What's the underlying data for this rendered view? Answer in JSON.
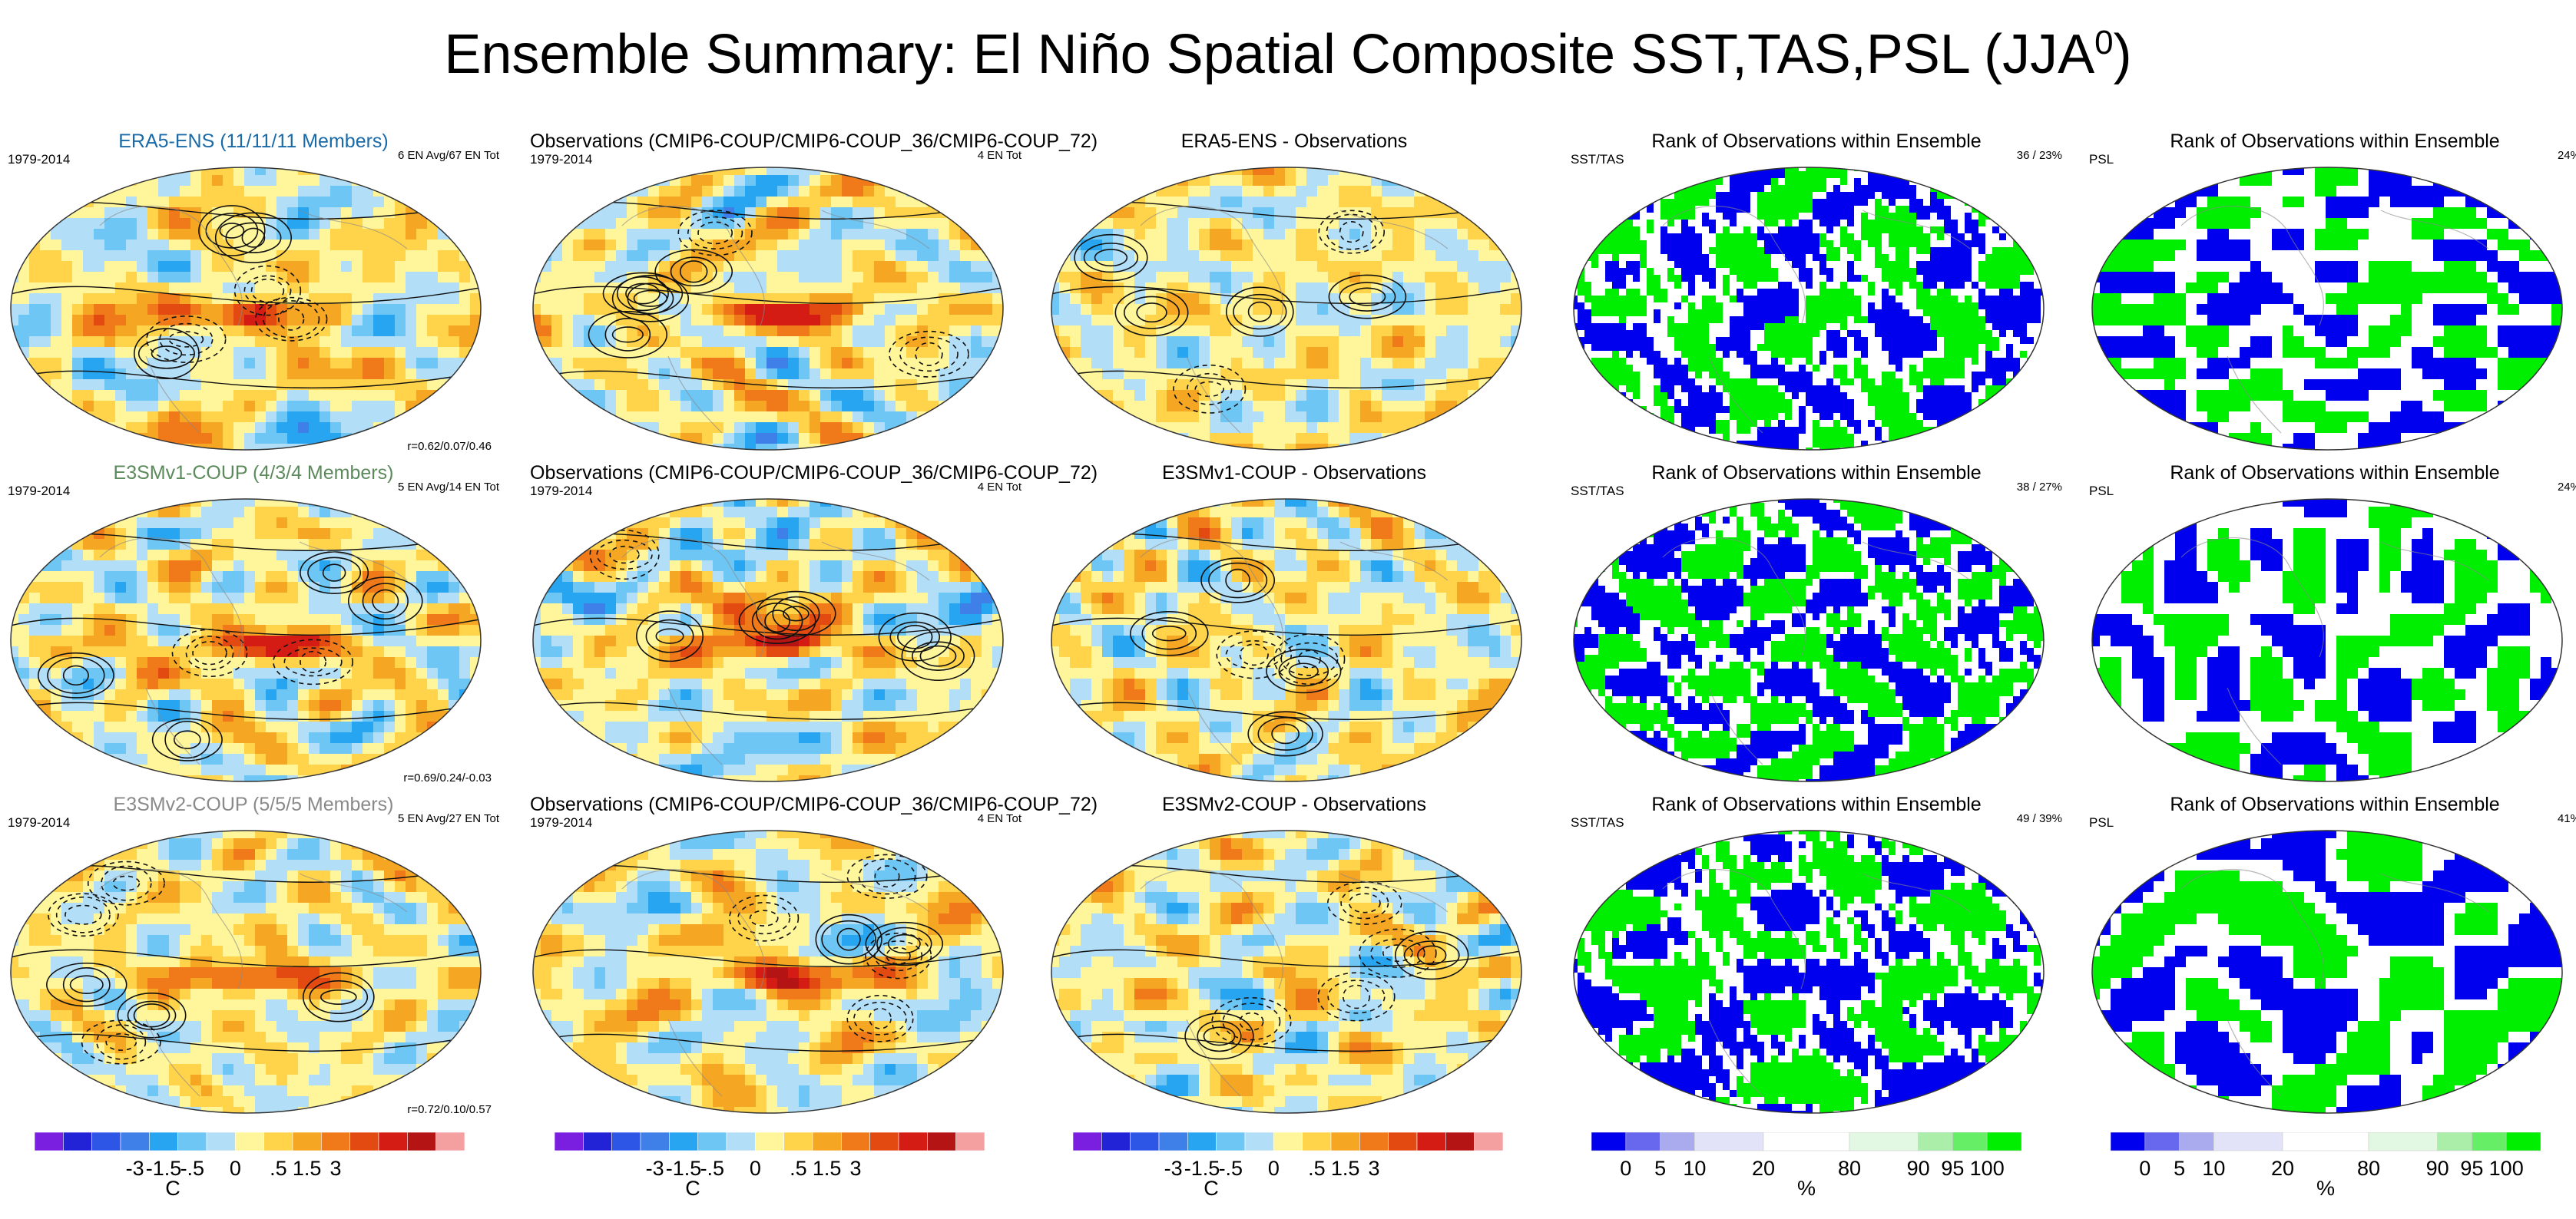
{
  "title": "Ensemble Summary: El Niño Spatial Composite SST,TAS,PSL (JJA",
  "title_sup": "0",
  "title_close": ")",
  "rows": [
    {
      "panels": [
        {
          "title": "ERA5-ENS (11/11/11 Members)",
          "title_color": "#1a6aa8",
          "left": "1979-2014",
          "right": "6 EN Avg/67 EN Tot",
          "bottom": "r=0.62/0.07/0.46",
          "kind": "temp",
          "seed": 11
        },
        {
          "title": "Observations (CMIP6-COUP/CMIP6-COUP_36/CMIP6-COUP_72)",
          "title_color": "#000000",
          "left": "1979-2014",
          "right": "4 EN Tot",
          "bottom": "",
          "kind": "temp",
          "seed": 12
        },
        {
          "title": "ERA5-ENS - Observations",
          "title_color": "#000000",
          "left": "",
          "right": "",
          "bottom": "",
          "kind": "diff",
          "seed": 13
        },
        {
          "title": "Rank of Observations within Ensemble",
          "title_color": "#000000",
          "left": "SST/TAS",
          "right": "36 /  23%",
          "bottom": "",
          "kind": "rank",
          "seed": 14
        },
        {
          "title": "Rank of Observations within Ensemble",
          "title_color": "#000000",
          "left": "PSL",
          "right": "24%",
          "bottom": "",
          "kind": "rankpsl",
          "seed": 15
        }
      ]
    },
    {
      "panels": [
        {
          "title": "E3SMv1-COUP (4/3/4 Members)",
          "title_color": "#5c8a5c",
          "left": "1979-2014",
          "right": "5 EN Avg/14 EN Tot",
          "bottom": "r=0.69/0.24/-0.03",
          "kind": "temp",
          "seed": 21
        },
        {
          "title": "Observations (CMIP6-COUP/CMIP6-COUP_36/CMIP6-COUP_72)",
          "title_color": "#000000",
          "left": "1979-2014",
          "right": "4 EN Tot",
          "bottom": "",
          "kind": "temp",
          "seed": 22
        },
        {
          "title": "E3SMv1-COUP - Observations",
          "title_color": "#000000",
          "left": "",
          "right": "",
          "bottom": "",
          "kind": "diff",
          "seed": 23
        },
        {
          "title": "Rank of Observations within Ensemble",
          "title_color": "#000000",
          "left": "SST/TAS",
          "right": "38 /  27%",
          "bottom": "",
          "kind": "rank",
          "seed": 24
        },
        {
          "title": "Rank of Observations within Ensemble",
          "title_color": "#000000",
          "left": "PSL",
          "right": "24%",
          "bottom": "",
          "kind": "rankpsl",
          "seed": 25
        }
      ]
    },
    {
      "panels": [
        {
          "title": "E3SMv2-COUP (5/5/5 Members)",
          "title_color": "#8a8a8a",
          "left": "1979-2014",
          "right": "5 EN Avg/27 EN Tot",
          "bottom": "r=0.72/0.10/0.57",
          "kind": "temp",
          "seed": 31
        },
        {
          "title": "Observations (CMIP6-COUP/CMIP6-COUP_36/CMIP6-COUP_72)",
          "title_color": "#000000",
          "left": "1979-2014",
          "right": "4 EN Tot",
          "bottom": "",
          "kind": "temp",
          "seed": 32
        },
        {
          "title": "E3SMv2-COUP - Observations",
          "title_color": "#000000",
          "left": "",
          "right": "",
          "bottom": "",
          "kind": "diff",
          "seed": 33
        },
        {
          "title": "Rank of Observations within Ensemble",
          "title_color": "#000000",
          "left": "SST/TAS",
          "right": "49 /  39%",
          "bottom": "",
          "kind": "rank",
          "seed": 34
        },
        {
          "title": "Rank of Observations within Ensemble",
          "title_color": "#000000",
          "left": "PSL",
          "right": "41%",
          "bottom": "",
          "kind": "rankpsl",
          "seed": 35
        }
      ]
    }
  ],
  "colorbars": [
    {
      "kind": "temp",
      "unit": "C",
      "labels": [
        "-3",
        "-1.5",
        "-.5",
        "0",
        ".5",
        "1.5",
        "3"
      ]
    },
    {
      "kind": "temp",
      "unit": "C",
      "labels": [
        "-3",
        "-1.5",
        "-.5",
        "0",
        ".5",
        "1.5",
        "3"
      ]
    },
    {
      "kind": "temp",
      "unit": "C",
      "labels": [
        "-3",
        "-1.5",
        "-.5",
        "0",
        ".5",
        "1.5",
        "3"
      ]
    },
    {
      "kind": "rank",
      "unit": "%",
      "labels": [
        "0",
        "5",
        "10",
        "20",
        "80",
        "90",
        "95",
        "100"
      ]
    },
    {
      "kind": "rank",
      "unit": "%",
      "labels": [
        "0",
        "5",
        "10",
        "20",
        "80",
        "90",
        "95",
        "100"
      ]
    }
  ],
  "palettes": {
    "temp": [
      "#7a1fe0",
      "#2222d6",
      "#2e56e6",
      "#3f7fe8",
      "#27a5f0",
      "#6ec6f5",
      "#b3def7",
      "#fff59a",
      "#ffd34a",
      "#f5a623",
      "#f07a1a",
      "#e34a12",
      "#d41c14",
      "#b51414",
      "#f5a0a0"
    ],
    "rank": [
      "#0000ee",
      "#6868ee",
      "#aaaaee",
      "#e2e2f8",
      "#ffffff",
      "#e2f8e2",
      "#aaeeaa",
      "#66ee66",
      "#00ee00"
    ]
  },
  "chart_data": [
    {
      "type": "heatmap",
      "title": "ERA5-ENS (11/11/11 Members)",
      "variable": "SST/TAS/PSL El Niño composite",
      "period": "1979-2014",
      "unit": "C",
      "levels": [
        -3,
        -1.5,
        -0.5,
        0,
        0.5,
        1.5,
        3
      ]
    },
    {
      "type": "heatmap",
      "title": "Observations (CMIP6-COUP/CMIP6-COUP_36/CMIP6-COUP_72)",
      "period": "1979-2014",
      "unit": "C",
      "levels": [
        -3,
        -1.5,
        -0.5,
        0,
        0.5,
        1.5,
        3
      ]
    },
    {
      "type": "heatmap",
      "title": "ERA5-ENS - Observations",
      "unit": "C",
      "levels": [
        -3,
        -1.5,
        -0.5,
        0,
        0.5,
        1.5,
        3
      ]
    },
    {
      "type": "heatmap",
      "title": "Rank of Observations within Ensemble",
      "variable": "SST/TAS",
      "unit": "%",
      "summary": "36 / 23%",
      "levels": [
        0,
        5,
        10,
        20,
        80,
        90,
        95,
        100
      ]
    },
    {
      "type": "heatmap",
      "title": "Rank of Observations within Ensemble",
      "variable": "PSL",
      "unit": "%",
      "summary": "24%",
      "levels": [
        0,
        5,
        10,
        20,
        80,
        90,
        95,
        100
      ]
    }
  ]
}
